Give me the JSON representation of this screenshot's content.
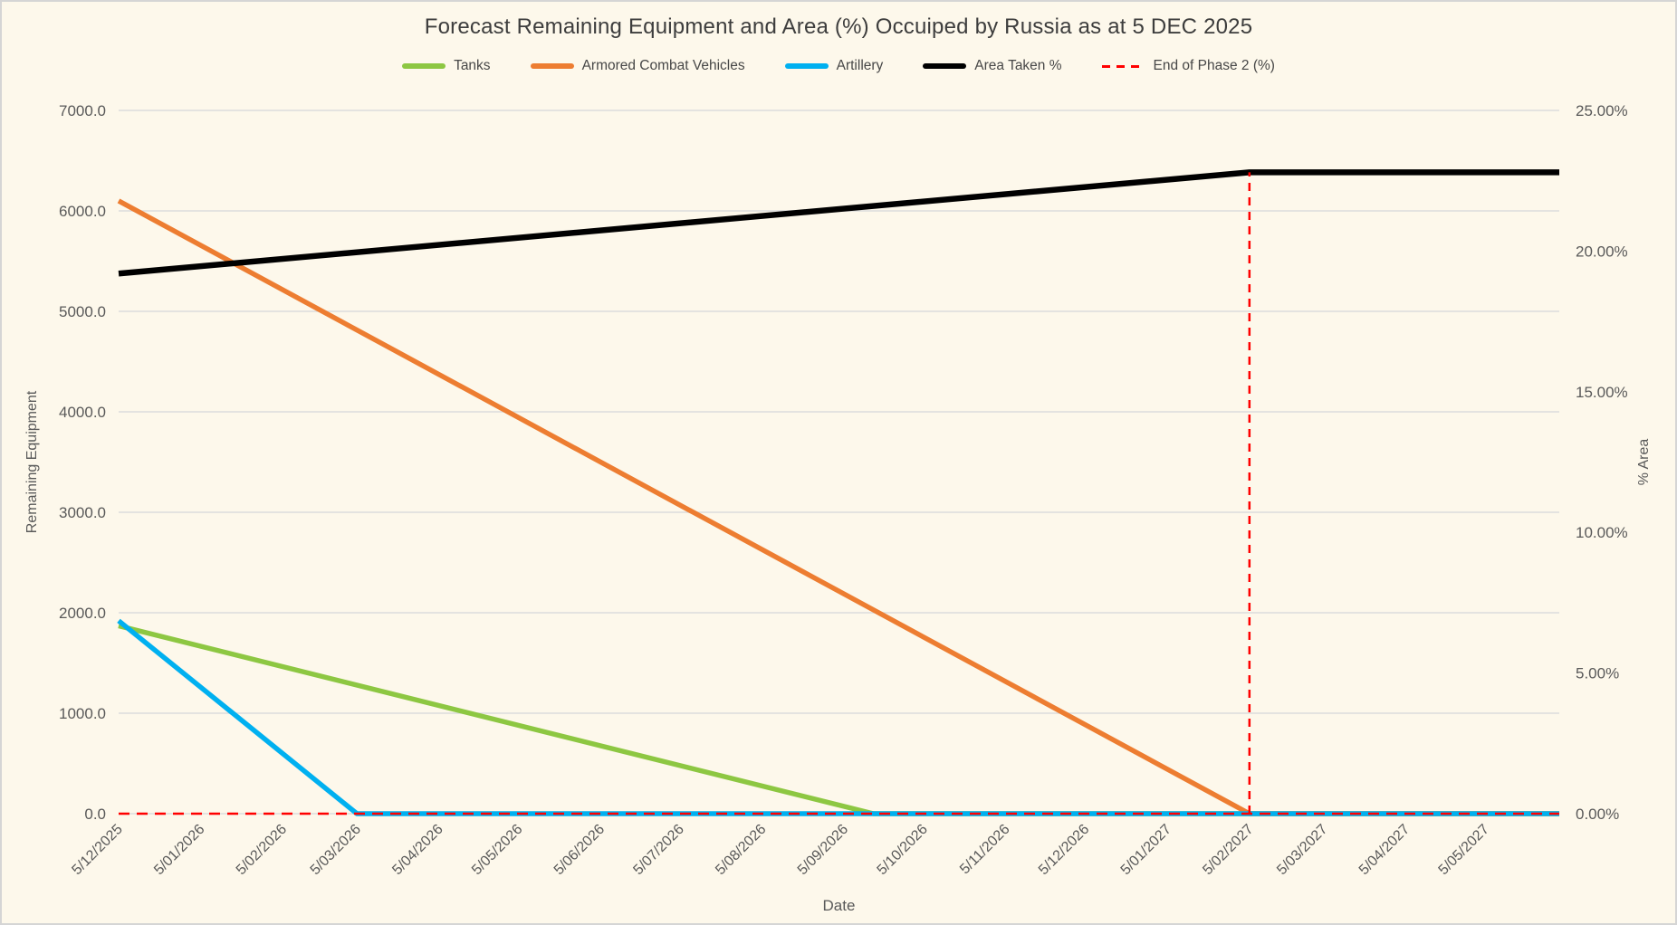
{
  "window": {
    "background_color": "#FDF8EB",
    "border_color": "#D5D5D5"
  },
  "chart_data": {
    "type": "line",
    "title": "Forecast Remaining Equipment and Area (%) Occuiped by Russia as at 5 DEC 2025",
    "xlabel": "Date",
    "ylabel_left": "Remaining Equipment",
    "ylabel_right": "% Area",
    "grid": "horizontal",
    "legend_position": "top",
    "x_total_days": 544,
    "x_tick_labels": [
      "5/12/2025",
      "5/01/2026",
      "5/02/2026",
      "5/03/2026",
      "5/04/2026",
      "5/05/2026",
      "5/06/2026",
      "5/07/2026",
      "5/08/2026",
      "5/09/2026",
      "5/10/2026",
      "5/11/2026",
      "5/12/2026",
      "5/01/2027",
      "5/02/2027",
      "5/03/2027",
      "5/04/2027",
      "5/05/2027"
    ],
    "x_tick_days": [
      0,
      31,
      62,
      90,
      121,
      151,
      182,
      212,
      243,
      274,
      304,
      335,
      365,
      396,
      427,
      455,
      486,
      516
    ],
    "y_left_axis": {
      "min": 0,
      "max": 7000,
      "step": 1000,
      "tick_labels": [
        "0.0",
        "1000.0",
        "2000.0",
        "3000.0",
        "4000.0",
        "5000.0",
        "6000.0",
        "7000.0"
      ]
    },
    "y_right_axis": {
      "min": 0,
      "max": 25,
      "step": 5,
      "tick_labels": [
        "0.00%",
        "5.00%",
        "10.00%",
        "15.00%",
        "20.00%",
        "25.00%"
      ]
    },
    "colors": {
      "tanks": "#8DC742",
      "armored_combat_vehicles": "#ED7D31",
      "artillery": "#00B0F0",
      "area_taken": "#000000",
      "end_of_phase_2": "#FF0000",
      "gridline": "#DCDCDC"
    },
    "series": [
      {
        "name": "Tanks",
        "axis": "left",
        "color": "#8DC742",
        "style": "solid",
        "width": 5.5,
        "points": [
          [
            0,
            1870
          ],
          [
            285,
            0
          ],
          [
            544,
            0
          ]
        ]
      },
      {
        "name": "Armored Combat Vehicles",
        "axis": "left",
        "color": "#ED7D31",
        "style": "solid",
        "width": 5.5,
        "points": [
          [
            0,
            6100
          ],
          [
            427,
            0
          ],
          [
            544,
            0
          ]
        ]
      },
      {
        "name": "Artillery",
        "axis": "left",
        "color": "#00B0F0",
        "style": "solid",
        "width": 5.5,
        "points": [
          [
            0,
            1920
          ],
          [
            90,
            0
          ],
          [
            544,
            0
          ]
        ]
      },
      {
        "name": "Area Taken %",
        "axis": "right",
        "color": "#000000",
        "style": "solid",
        "width": 6.5,
        "points": [
          [
            0,
            19.2
          ],
          [
            427,
            22.8
          ],
          [
            544,
            22.8
          ]
        ]
      },
      {
        "name": "End of Phase 2 (%)",
        "axis": "right",
        "color": "#FF0000",
        "style": "dashed",
        "width": 2.5,
        "points": [
          [
            0,
            0
          ],
          [
            544,
            0
          ]
        ],
        "spike": {
          "day": 427,
          "top": 22.8
        }
      }
    ],
    "legend": [
      {
        "label": "Tanks",
        "color": "#8DC742",
        "style": "solid"
      },
      {
        "label": "Armored Combat Vehicles",
        "color": "#ED7D31",
        "style": "solid"
      },
      {
        "label": "Artillery",
        "color": "#00B0F0",
        "style": "solid"
      },
      {
        "label": "Area Taken %",
        "color": "#000000",
        "style": "solid"
      },
      {
        "label": "End of Phase 2 (%)",
        "color": "#FF0000",
        "style": "dashed"
      }
    ]
  }
}
